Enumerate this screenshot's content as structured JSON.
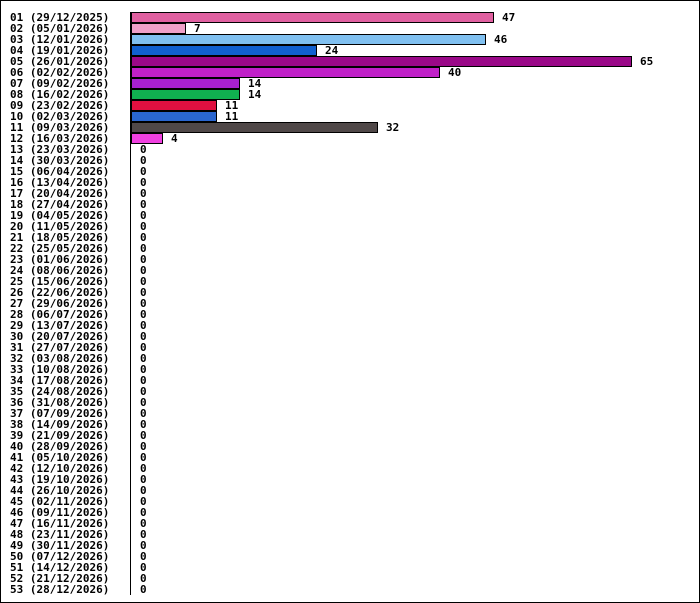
{
  "chart_data": {
    "type": "bar",
    "orientation": "horizontal",
    "grid": false,
    "legend": "none",
    "bar_outline_color": "#000000",
    "categories": [
      "01 (29/12/2025)",
      "02 (05/01/2026)",
      "03 (12/01/2026)",
      "04 (19/01/2026)",
      "05 (26/01/2026)",
      "06 (02/02/2026)",
      "07 (09/02/2026)",
      "08 (16/02/2026)",
      "09 (23/02/2026)",
      "10 (02/03/2026)",
      "11 (09/03/2026)",
      "12 (16/03/2026)",
      "13 (23/03/2026)",
      "14 (30/03/2026)",
      "15 (06/04/2026)",
      "16 (13/04/2026)",
      "17 (20/04/2026)",
      "18 (27/04/2026)",
      "19 (04/05/2026)",
      "20 (11/05/2026)",
      "21 (18/05/2026)",
      "22 (25/05/2026)",
      "23 (01/06/2026)",
      "24 (08/06/2026)",
      "25 (15/06/2026)",
      "26 (22/06/2026)",
      "27 (29/06/2026)",
      "28 (06/07/2026)",
      "29 (13/07/2026)",
      "30 (20/07/2026)",
      "31 (27/07/2026)",
      "32 (03/08/2026)",
      "33 (10/08/2026)",
      "34 (17/08/2026)",
      "35 (24/08/2026)",
      "36 (31/08/2026)",
      "37 (07/09/2026)",
      "38 (14/09/2026)",
      "39 (21/09/2026)",
      "40 (28/09/2026)",
      "41 (05/10/2026)",
      "42 (12/10/2026)",
      "43 (19/10/2026)",
      "44 (26/10/2026)",
      "45 (02/11/2026)",
      "46 (09/11/2026)",
      "47 (16/11/2026)",
      "48 (23/11/2026)",
      "49 (30/11/2026)",
      "50 (07/12/2026)",
      "51 (14/12/2026)",
      "52 (21/12/2026)",
      "53 (28/12/2026)"
    ],
    "values": [
      47,
      7,
      46,
      24,
      65,
      40,
      14,
      14,
      11,
      11,
      32,
      4,
      0,
      0,
      0,
      0,
      0,
      0,
      0,
      0,
      0,
      0,
      0,
      0,
      0,
      0,
      0,
      0,
      0,
      0,
      0,
      0,
      0,
      0,
      0,
      0,
      0,
      0,
      0,
      0,
      0,
      0,
      0,
      0,
      0,
      0,
      0,
      0,
      0,
      0,
      0,
      0,
      0
    ],
    "colors": [
      "#e060a0",
      "#f0a0c8",
      "#80c0f0",
      "#1060d0",
      "#9a0888",
      "#c020c8",
      "#a820d0",
      "#10b050",
      "#e01040",
      "#2a66d0",
      "#504848",
      "#f040e0"
    ]
  }
}
